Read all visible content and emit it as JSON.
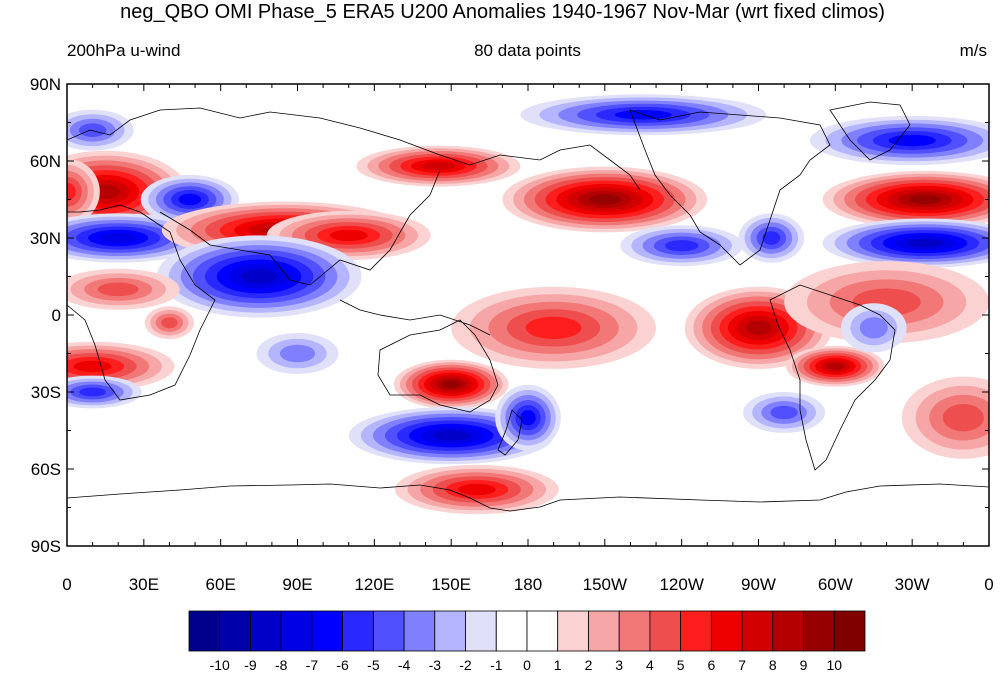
{
  "title": "neg_QBO OMI Phase_5 ERA5 U200 Anomalies 1940-1967 Nov-Mar (wrt fixed climos)",
  "subtitle_left": "200hPa u-wind",
  "subtitle_center": "80 data points",
  "subtitle_right": "m/s",
  "lat_labels": [
    "90N",
    "60N",
    "30N",
    "0",
    "30S",
    "60S",
    "90S"
  ],
  "lon_labels": [
    "0",
    "30E",
    "60E",
    "90E",
    "120E",
    "150E",
    "180",
    "150W",
    "120W",
    "90W",
    "60W",
    "30W",
    "0"
  ],
  "colorbar": {
    "labels": [
      "-10",
      "-9",
      "-8",
      "-7",
      "-6",
      "-5",
      "-4",
      "-3",
      "-2",
      "-1",
      "0",
      "1",
      "2",
      "3",
      "4",
      "5",
      "6",
      "7",
      "8",
      "9",
      "10"
    ],
    "colors": [
      "#00008c",
      "#0000aa",
      "#0000c8",
      "#0000e6",
      "#0000ff",
      "#2828ff",
      "#5050ff",
      "#8080ff",
      "#b4b4ff",
      "#e0e0f8",
      "#ffffff",
      "#ffffff",
      "#fad2d2",
      "#f6a6a6",
      "#f27878",
      "#ee4e4e",
      "#ff1e1e",
      "#ee0000",
      "#d20000",
      "#b40000",
      "#960000",
      "#800000"
    ]
  },
  "features": [
    {
      "lon": 15,
      "lat": 48,
      "a": 20,
      "b": 10,
      "val": 8
    },
    {
      "lon": 0,
      "lat": 48,
      "a": 8,
      "b": 8,
      "val": 5
    },
    {
      "lon": 20,
      "lat": 30,
      "a": 22,
      "b": 6,
      "val": -7
    },
    {
      "lon": 10,
      "lat": 72,
      "a": 10,
      "b": 5,
      "val": -4
    },
    {
      "lon": 48,
      "lat": 45,
      "a": 12,
      "b": 6,
      "val": -6
    },
    {
      "lon": 85,
      "lat": 33,
      "a": 30,
      "b": 7,
      "val": 8
    },
    {
      "lon": 110,
      "lat": 31,
      "a": 20,
      "b": 6,
      "val": 6
    },
    {
      "lon": 75,
      "lat": 15,
      "a": 25,
      "b": 10,
      "val": -8
    },
    {
      "lon": 20,
      "lat": 10,
      "a": 15,
      "b": 5,
      "val": 4
    },
    {
      "lon": 40,
      "lat": -3,
      "a": 6,
      "b": 4,
      "val": 4
    },
    {
      "lon": 10,
      "lat": -20,
      "a": 20,
      "b": 6,
      "val": 6
    },
    {
      "lon": 10,
      "lat": -30,
      "a": 12,
      "b": 4,
      "val": -5
    },
    {
      "lon": 90,
      "lat": -15,
      "a": 10,
      "b": 5,
      "val": -3
    },
    {
      "lon": 150,
      "lat": -27,
      "a": 14,
      "b": 6,
      "val": 9
    },
    {
      "lon": 150,
      "lat": -47,
      "a": 25,
      "b": 7,
      "val": -8
    },
    {
      "lon": 180,
      "lat": -40,
      "a": 8,
      "b": 8,
      "val": -6
    },
    {
      "lon": 160,
      "lat": -68,
      "a": 20,
      "b": 6,
      "val": 6
    },
    {
      "lon": 145,
      "lat": 58,
      "a": 20,
      "b": 5,
      "val": 7
    },
    {
      "lon": 210,
      "lat": 45,
      "a": 25,
      "b": 8,
      "val": 9
    },
    {
      "lon": 225,
      "lat": 78,
      "a": 30,
      "b": 5,
      "val": -6
    },
    {
      "lon": 240,
      "lat": 27,
      "a": 15,
      "b": 5,
      "val": -5
    },
    {
      "lon": 275,
      "lat": 30,
      "a": 8,
      "b": 6,
      "val": -5
    },
    {
      "lon": 190,
      "lat": -5,
      "a": 25,
      "b": 10,
      "val": 5
    },
    {
      "lon": 270,
      "lat": -5,
      "a": 18,
      "b": 10,
      "val": 8
    },
    {
      "lon": 300,
      "lat": -20,
      "a": 12,
      "b": 5,
      "val": 8
    },
    {
      "lon": 335,
      "lat": 45,
      "a": 25,
      "b": 7,
      "val": 9
    },
    {
      "lon": 335,
      "lat": 28,
      "a": 25,
      "b": 6,
      "val": -8
    },
    {
      "lon": 330,
      "lat": 68,
      "a": 25,
      "b": 6,
      "val": -6
    },
    {
      "lon": 320,
      "lat": 5,
      "a": 25,
      "b": 10,
      "val": 4
    },
    {
      "lon": 280,
      "lat": -38,
      "a": 10,
      "b": 5,
      "val": -4
    },
    {
      "lon": 315,
      "lat": -5,
      "a": 8,
      "b": 6,
      "val": -3
    },
    {
      "lon": 350,
      "lat": -40,
      "a": 15,
      "b": 10,
      "val": 4
    }
  ]
}
